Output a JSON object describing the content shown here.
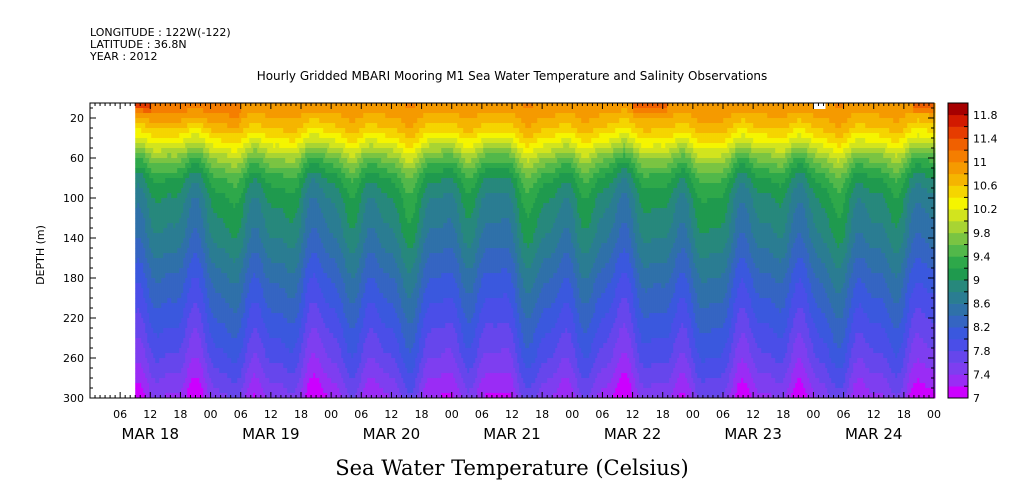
{
  "header": {
    "longitude": "LONGITUDE : 122W(-122)",
    "latitude": "LATITUDE : 36.8N",
    "year": "YEAR : 2012"
  },
  "chart_data": {
    "type": "heatmap",
    "title": "Hourly Gridded MBARI Mooring M1 Sea Water Temperature and Salinity Observations",
    "variable_label": "Sea Water Temperature (Celsius)",
    "ylabel": "DEPTH (m)",
    "xlabel": "",
    "ylim": [
      300,
      5
    ],
    "y_ticks": [
      20,
      60,
      100,
      140,
      180,
      220,
      260,
      300
    ],
    "x_hour_ticks": [
      "06",
      "12",
      "18",
      "00",
      "06",
      "12",
      "18",
      "00",
      "06",
      "12",
      "18",
      "00",
      "06",
      "12",
      "18",
      "00",
      "06",
      "12",
      "18",
      "00",
      "06",
      "12",
      "18",
      "00",
      "06",
      "12",
      "18",
      "00"
    ],
    "x_date_labels": [
      "MAR 18",
      "MAR 19",
      "MAR 20",
      "MAR 21",
      "MAR 22",
      "MAR 23",
      "MAR 24"
    ],
    "x_range_hours": [
      0,
      168
    ],
    "data_start_hour": 9,
    "colorbar": {
      "levels": [
        7,
        7.2,
        7.4,
        7.6,
        7.8,
        8,
        8.2,
        8.4,
        8.6,
        8.8,
        9,
        9.2,
        9.4,
        9.6,
        9.8,
        10,
        10.2,
        10.4,
        10.6,
        10.8,
        11,
        11.2,
        11.4,
        11.6,
        11.8,
        12
      ],
      "colors": [
        "#cc00ff",
        "#9a2cf5",
        "#7e3ef0",
        "#6646ec",
        "#4a4ee8",
        "#3a58de",
        "#3565c2",
        "#2f71a9",
        "#2a7d92",
        "#27887c",
        "#1f9a4e",
        "#2ea84a",
        "#52b84a",
        "#7ac442",
        "#a8d433",
        "#d2e41e",
        "#f5f500",
        "#f5d500",
        "#f5b500",
        "#f59a00",
        "#f57e00",
        "#f06000",
        "#e63c00",
        "#d21a00",
        "#a60000"
      ],
      "labels": [
        "7",
        "7.4",
        "7.8",
        "8.2",
        "8.6",
        "9",
        "9.4",
        "9.8",
        "10.2",
        "10.6",
        "11",
        "11.4",
        "11.8"
      ]
    },
    "depth_profile_nodes": [
      {
        "depth": 5,
        "value": 11.0
      },
      {
        "depth": 30,
        "value": 10.6
      },
      {
        "depth": 45,
        "value": 10.2
      },
      {
        "depth": 60,
        "value": 9.7
      },
      {
        "depth": 80,
        "value": 9.2
      },
      {
        "depth": 100,
        "value": 8.95
      },
      {
        "depth": 140,
        "value": 8.7
      },
      {
        "depth": 180,
        "value": 8.35
      },
      {
        "depth": 220,
        "value": 8.05
      },
      {
        "depth": 260,
        "value": 7.75
      },
      {
        "depth": 300,
        "value": 7.35
      }
    ],
    "note_warm_surface_hours": [
      9,
      12,
      108,
      115,
      164,
      168
    ],
    "missing_patch": {
      "hour": 145,
      "depth": 5
    }
  }
}
